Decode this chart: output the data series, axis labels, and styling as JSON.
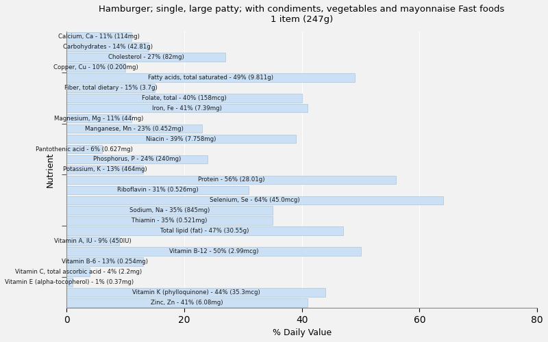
{
  "title": "Hamburger; single, large patty; with condiments, vegetables and mayonnaise Fast foods\n1 item (247g)",
  "xlabel": "% Daily Value",
  "ylabel": "Nutrient",
  "bar_color": "#cce0f5",
  "bar_edgecolor": "#a0bcd8",
  "plot_bg": "#f2f2f2",
  "fig_bg": "#f2f2f2",
  "xlim": [
    0,
    80
  ],
  "xticks": [
    0,
    20,
    40,
    60,
    80
  ],
  "nutrients": [
    {
      "label": "Calcium, Ca - 11% (114mg)",
      "value": 11
    },
    {
      "label": "Carbohydrates - 14% (42.81g)",
      "value": 14
    },
    {
      "label": "Cholesterol - 27% (82mg)",
      "value": 27
    },
    {
      "label": "Copper, Cu - 10% (0.200mg)",
      "value": 10
    },
    {
      "label": "Fatty acids, total saturated - 49% (9.811g)",
      "value": 49
    },
    {
      "label": "Fiber, total dietary - 15% (3.7g)",
      "value": 15
    },
    {
      "label": "Folate, total - 40% (158mcg)",
      "value": 40
    },
    {
      "label": "Iron, Fe - 41% (7.39mg)",
      "value": 41
    },
    {
      "label": "Magnesium, Mg - 11% (44mg)",
      "value": 11
    },
    {
      "label": "Manganese, Mn - 23% (0.452mg)",
      "value": 23
    },
    {
      "label": "Niacin - 39% (7.758mg)",
      "value": 39
    },
    {
      "label": "Pantothenic acid - 6% (0.627mg)",
      "value": 6
    },
    {
      "label": "Phosphorus, P - 24% (240mg)",
      "value": 24
    },
    {
      "label": "Potassium, K - 13% (464mg)",
      "value": 13
    },
    {
      "label": "Protein - 56% (28.01g)",
      "value": 56
    },
    {
      "label": "Riboflavin - 31% (0.526mg)",
      "value": 31
    },
    {
      "label": "Selenium, Se - 64% (45.0mcg)",
      "value": 64
    },
    {
      "label": "Sodium, Na - 35% (845mg)",
      "value": 35
    },
    {
      "label": "Thiamin - 35% (0.521mg)",
      "value": 35
    },
    {
      "label": "Total lipid (fat) - 47% (30.55g)",
      "value": 47
    },
    {
      "label": "Vitamin A, IU - 9% (450IU)",
      "value": 9
    },
    {
      "label": "Vitamin B-12 - 50% (2.99mcg)",
      "value": 50
    },
    {
      "label": "Vitamin B-6 - 13% (0.254mg)",
      "value": 13
    },
    {
      "label": "Vitamin C, total ascorbic acid - 4% (2.2mg)",
      "value": 4
    },
    {
      "label": "Vitamin E (alpha-tocopherol) - 1% (0.37mg)",
      "value": 1
    },
    {
      "label": "Vitamin K (phylloquinone) - 44% (35.3mcg)",
      "value": 44
    },
    {
      "label": "Zinc, Zn - 41% (6.08mg)",
      "value": 41
    }
  ]
}
